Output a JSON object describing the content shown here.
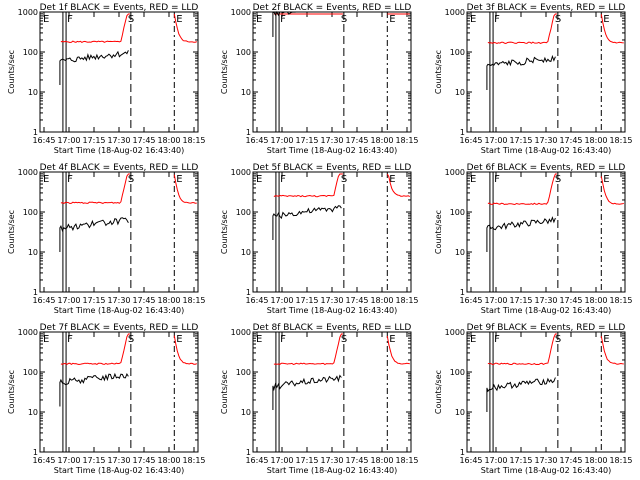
{
  "common": {
    "title_suffix": "BLACK = Events, RED = LLD",
    "ylabel": "Counts/sec",
    "xlabel": "Start Time (18-Aug-02 16:43:40)",
    "x_ticks": [
      "16:45",
      "17:00",
      "17:15",
      "17:30",
      "17:45",
      "18:00",
      "18:15"
    ],
    "y_ticks": [
      "1",
      "10",
      "100",
      "1000"
    ],
    "markers": {
      "E": "E",
      "F": "F",
      "S": "S"
    },
    "colors": {
      "events": "#000000",
      "lld": "#ff0000"
    }
  },
  "chart_data": [
    {
      "type": "line",
      "title": "Det 1f BLACK = Events, RED = LLD",
      "xlabel": "Start Time (18-Aug-02 16:43:40)",
      "ylabel": "Counts/sec",
      "ylim": [
        1,
        1000
      ],
      "y_scale": "log",
      "series": [
        {
          "name": "Events",
          "color": "#000000",
          "level": 60
        },
        {
          "name": "LLD",
          "color": "#ff0000",
          "level": 180
        }
      ]
    },
    {
      "type": "line",
      "title": "Det 2f BLACK = Events, RED = LLD",
      "xlabel": "Start Time (18-Aug-02 16:43:40)",
      "ylabel": "Counts/sec",
      "ylim": [
        1,
        1000
      ],
      "y_scale": "log",
      "series": [
        {
          "name": "Events",
          "color": "#000000",
          "level": 950
        },
        {
          "name": "LLD",
          "color": "#ff0000",
          "level": 1000
        }
      ]
    },
    {
      "type": "line",
      "title": "Det 3f BLACK = Events, RED = LLD",
      "xlabel": "Start Time (18-Aug-02 16:43:40)",
      "ylabel": "Counts/sec",
      "ylim": [
        1,
        1000
      ],
      "y_scale": "log",
      "series": [
        {
          "name": "Events",
          "color": "#000000",
          "level": 45
        },
        {
          "name": "LLD",
          "color": "#ff0000",
          "level": 170
        }
      ]
    },
    {
      "type": "line",
      "title": "Det 4f BLACK = Events, RED = LLD",
      "xlabel": "Start Time (18-Aug-02 16:43:40)",
      "ylabel": "Counts/sec",
      "ylim": [
        1,
        1000
      ],
      "y_scale": "log",
      "series": [
        {
          "name": "Events",
          "color": "#000000",
          "level": 40
        },
        {
          "name": "LLD",
          "color": "#ff0000",
          "level": 170
        }
      ]
    },
    {
      "type": "line",
      "title": "Det 5f BLACK = Events, RED = LLD",
      "xlabel": "Start Time (18-Aug-02 16:43:40)",
      "ylabel": "Counts/sec",
      "ylim": [
        1,
        1000
      ],
      "y_scale": "log",
      "series": [
        {
          "name": "Events",
          "color": "#000000",
          "level": 80
        },
        {
          "name": "LLD",
          "color": "#ff0000",
          "level": 250
        }
      ]
    },
    {
      "type": "line",
      "title": "Det 6f BLACK = Events, RED = LLD",
      "xlabel": "Start Time (18-Aug-02 16:43:40)",
      "ylabel": "Counts/sec",
      "ylim": [
        1,
        1000
      ],
      "y_scale": "log",
      "series": [
        {
          "name": "Events",
          "color": "#000000",
          "level": 40
        },
        {
          "name": "LLD",
          "color": "#ff0000",
          "level": 160
        }
      ]
    },
    {
      "type": "line",
      "title": "Det 7f BLACK = Events, RED = LLD",
      "xlabel": "Start Time (18-Aug-02 16:43:40)",
      "ylabel": "Counts/sec",
      "ylim": [
        1,
        1000
      ],
      "y_scale": "log",
      "series": [
        {
          "name": "Events",
          "color": "#000000",
          "level": 55
        },
        {
          "name": "LLD",
          "color": "#ff0000",
          "level": 160
        }
      ]
    },
    {
      "type": "line",
      "title": "Det 8f BLACK = Events, RED = LLD",
      "xlabel": "Start Time (18-Aug-02 16:43:40)",
      "ylabel": "Counts/sec",
      "ylim": [
        1,
        1000
      ],
      "y_scale": "log",
      "series": [
        {
          "name": "Events",
          "color": "#000000",
          "level": 45
        },
        {
          "name": "LLD",
          "color": "#ff0000",
          "level": 160
        }
      ]
    },
    {
      "type": "line",
      "title": "Det 9f BLACK = Events, RED = LLD",
      "xlabel": "Start Time (18-Aug-02 16:43:40)",
      "ylabel": "Counts/sec",
      "ylim": [
        1,
        1000
      ],
      "y_scale": "log",
      "series": [
        {
          "name": "Events",
          "color": "#000000",
          "level": 40
        },
        {
          "name": "LLD",
          "color": "#ff0000",
          "level": 160
        }
      ]
    }
  ]
}
